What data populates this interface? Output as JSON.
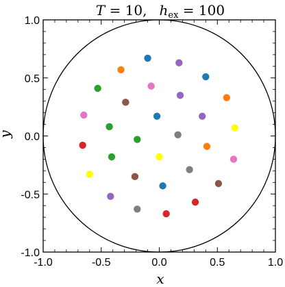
{
  "chart_data": {
    "type": "scatter",
    "title_parts": {
      "T_symbol": "T",
      "T_value": " = 10,",
      "h_symbol": "h",
      "h_subscript": "ex",
      "h_value": " = 100"
    },
    "xlabel": "x",
    "ylabel": "y",
    "xlim": [
      -1.0,
      1.0
    ],
    "ylim": [
      -1.0,
      1.0
    ],
    "xticks": [
      "-1.0",
      "-0.5",
      "0.0",
      "0.5",
      "1.0"
    ],
    "yticks": [
      "1.0",
      "0.5",
      "0.0",
      "-0.5",
      "-1.0"
    ],
    "xtick_values": [
      -1.0,
      -0.5,
      0.0,
      0.5,
      1.0
    ],
    "ytick_values": [
      1.0,
      0.5,
      0.0,
      -0.5,
      -1.0
    ],
    "boundary_circle": {
      "cx": 0.0,
      "cy": 0.0,
      "r": 1.0
    },
    "grid": false,
    "points": [
      {
        "x": -0.1,
        "y": 0.67,
        "color": "#1f77b4"
      },
      {
        "x": 0.17,
        "y": 0.63,
        "color": "#9467bd"
      },
      {
        "x": -0.33,
        "y": 0.57,
        "color": "#ff7f0e"
      },
      {
        "x": 0.4,
        "y": 0.51,
        "color": "#1f77b4"
      },
      {
        "x": -0.53,
        "y": 0.41,
        "color": "#2ca02c"
      },
      {
        "x": -0.07,
        "y": 0.43,
        "color": "#e377c2"
      },
      {
        "x": 0.18,
        "y": 0.35,
        "color": "#9467bd"
      },
      {
        "x": 0.58,
        "y": 0.33,
        "color": "#ff7f0e"
      },
      {
        "x": -0.29,
        "y": 0.29,
        "color": "#8c564b"
      },
      {
        "x": -0.65,
        "y": 0.18,
        "color": "#e377c2"
      },
      {
        "x": -0.02,
        "y": 0.17,
        "color": "#1f77b4"
      },
      {
        "x": 0.37,
        "y": 0.17,
        "color": "#9467bd"
      },
      {
        "x": -0.43,
        "y": 0.08,
        "color": "#2ca02c"
      },
      {
        "x": 0.65,
        "y": 0.07,
        "color": "#ffff00"
      },
      {
        "x": 0.16,
        "y": 0.01,
        "color": "#7f7f7f"
      },
      {
        "x": -0.19,
        "y": -0.03,
        "color": "#2ca02c"
      },
      {
        "x": -0.66,
        "y": -0.08,
        "color": "#d62728"
      },
      {
        "x": 0.41,
        "y": -0.09,
        "color": "#ff7f0e"
      },
      {
        "x": -0.41,
        "y": -0.18,
        "color": "#2ca02c"
      },
      {
        "x": 0.0,
        "y": -0.18,
        "color": "#ffff00"
      },
      {
        "x": 0.64,
        "y": -0.2,
        "color": "#e377c2"
      },
      {
        "x": 0.26,
        "y": -0.29,
        "color": "#7f7f7f"
      },
      {
        "x": -0.6,
        "y": -0.33,
        "color": "#ffff00"
      },
      {
        "x": -0.21,
        "y": -0.35,
        "color": "#8c564b"
      },
      {
        "x": 0.03,
        "y": -0.43,
        "color": "#1f77b4"
      },
      {
        "x": 0.51,
        "y": -0.41,
        "color": "#8c564b"
      },
      {
        "x": -0.42,
        "y": -0.52,
        "color": "#9467bd"
      },
      {
        "x": 0.31,
        "y": -0.57,
        "color": "#d62728"
      },
      {
        "x": -0.19,
        "y": -0.63,
        "color": "#7f7f7f"
      },
      {
        "x": 0.06,
        "y": -0.67,
        "color": "#d62728"
      }
    ]
  }
}
